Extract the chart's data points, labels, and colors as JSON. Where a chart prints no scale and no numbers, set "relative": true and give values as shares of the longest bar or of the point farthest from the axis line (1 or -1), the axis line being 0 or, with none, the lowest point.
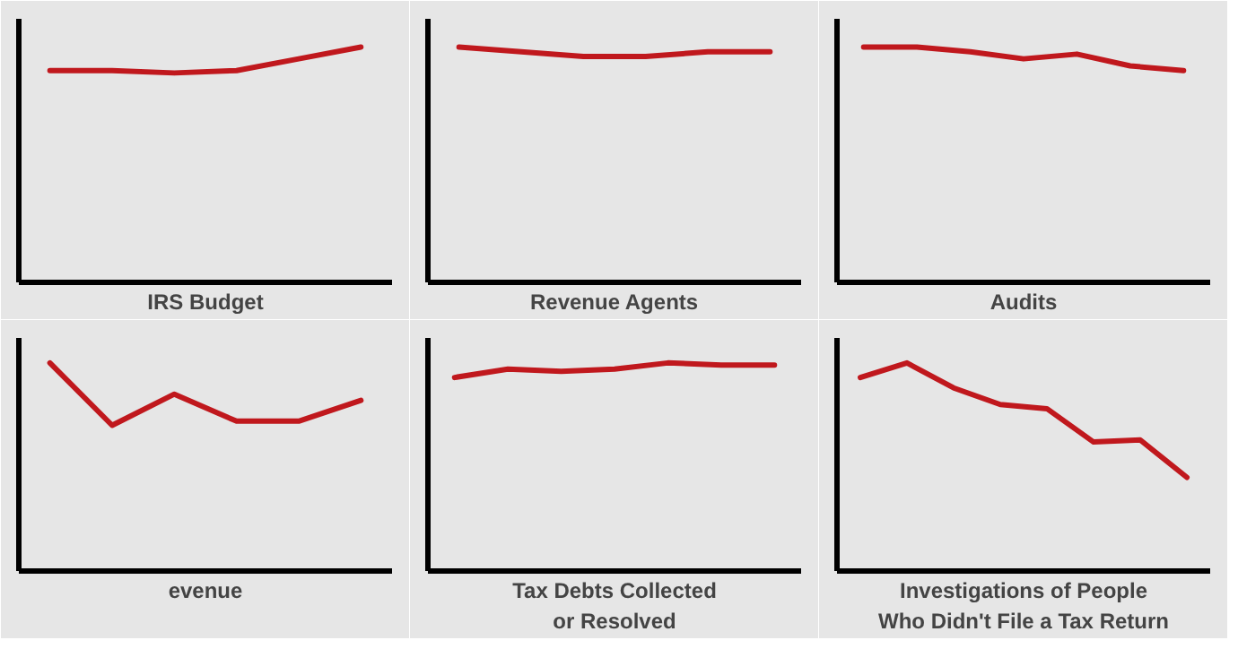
{
  "chart_data": [
    {
      "type": "line",
      "xlabel": "IRS Budget",
      "categories": [
        null,
        null,
        null,
        null,
        null,
        null
      ],
      "values": [
        0.9,
        0.9,
        0.89,
        0.9,
        0.95,
        1
      ],
      "color": "#c0181d",
      "relative": true
    },
    {
      "type": "line",
      "xlabel": "Revenue Agents",
      "categories": [
        null,
        null,
        null,
        null,
        null,
        null
      ],
      "values": [
        1,
        0.98,
        0.96,
        0.96,
        0.98,
        0.98
      ],
      "color": "#c0181d",
      "relative": true
    },
    {
      "type": "line",
      "xlabel": "Audits",
      "categories": [
        null,
        null,
        null,
        null,
        null,
        null,
        null
      ],
      "values": [
        1,
        1,
        0.98,
        0.95,
        0.97,
        0.92,
        0.9
      ],
      "color": "#c0181d",
      "relative": true
    },
    {
      "type": "line",
      "xlabel": "evenue",
      "categories": [
        null,
        null,
        null,
        null,
        null,
        null
      ],
      "values": [
        1,
        0.7,
        0.85,
        0.72,
        0.72,
        0.82
      ],
      "color": "#c0181d",
      "relative": true
    },
    {
      "type": "line",
      "xlabel": "Tax Debts Collected\nor Resolved",
      "categories": [
        null,
        null,
        null,
        null,
        null,
        null,
        null
      ],
      "values": [
        0.93,
        0.97,
        0.96,
        0.97,
        1,
        0.99,
        0.99
      ],
      "color": "#c0181d",
      "relative": true
    },
    {
      "type": "line",
      "xlabel": "Investigations of People\nWho Didn't File a Tax Return",
      "categories": [
        null,
        null,
        null,
        null,
        null,
        null,
        null,
        null
      ],
      "values": [
        0.93,
        1,
        0.88,
        0.8,
        0.78,
        0.62,
        0.63,
        0.45
      ],
      "color": "#c0181d",
      "relative": true
    }
  ]
}
